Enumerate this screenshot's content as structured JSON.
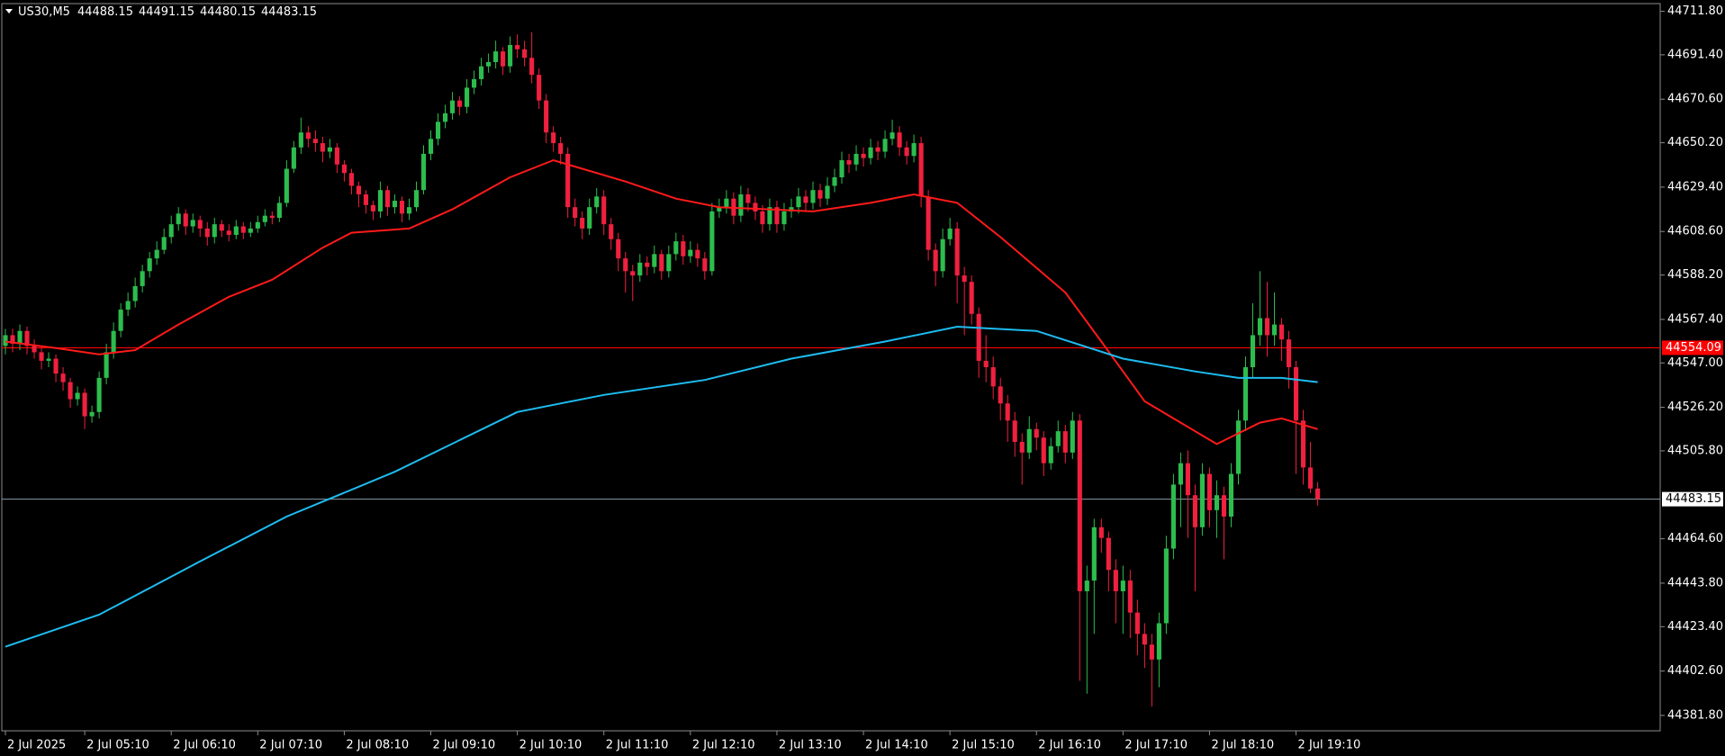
{
  "chart_data": {
    "type": "candlestick",
    "title": "US30,M5",
    "bull_color": "#2dbd4e",
    "bear_color": "#f0203f",
    "xlim": [
      -0.5,
      229.5
    ],
    "xticks": [
      {
        "value": 0,
        "label": "2 Jul 2025"
      },
      {
        "value": 11,
        "label": "2 Jul 05:10"
      },
      {
        "value": 23,
        "label": "2 Jul 06:10"
      },
      {
        "value": 35,
        "label": "2 Jul 07:10"
      },
      {
        "value": 47,
        "label": "2 Jul 08:10"
      },
      {
        "value": 59,
        "label": "2 Jul 09:10"
      },
      {
        "value": 71,
        "label": "2 Jul 10:10"
      },
      {
        "value": 83,
        "label": "2 Jul 11:10"
      },
      {
        "value": 95,
        "label": "2 Jul 12:10"
      },
      {
        "value": 107,
        "label": "2 Jul 13:10"
      },
      {
        "value": 119,
        "label": "2 Jul 14:10"
      },
      {
        "value": 131,
        "label": "2 Jul 15:10"
      },
      {
        "value": 143,
        "label": "2 Jul 16:10"
      },
      {
        "value": 155,
        "label": "2 Jul 17:10"
      },
      {
        "value": 167,
        "label": "2 Jul 18:10"
      },
      {
        "value": 179,
        "label": "2 Jul 19:10"
      }
    ],
    "ylim": [
      44374.6,
      44715.4
    ],
    "yticks": [
      {
        "value": 44711.8,
        "label": "44711.80"
      },
      {
        "value": 44691.4,
        "label": "44691.40"
      },
      {
        "value": 44670.6,
        "label": "44670.60"
      },
      {
        "value": 44650.2,
        "label": "44650.20"
      },
      {
        "value": 44629.4,
        "label": "44629.40"
      },
      {
        "value": 44608.6,
        "label": "44608.60"
      },
      {
        "value": 44588.2,
        "label": "44588.20"
      },
      {
        "value": 44567.4,
        "label": "44567.40"
      },
      {
        "value": 44547,
        "label": "44547.00"
      },
      {
        "value": 44526.2,
        "label": "44526.20"
      },
      {
        "value": 44505.8,
        "label": "44505.80"
      },
      {
        "value": 44464.6,
        "label": "44464.60"
      },
      {
        "value": 44443.8,
        "label": "44443.80"
      },
      {
        "value": 44423.4,
        "label": "44423.40"
      },
      {
        "value": 44402.6,
        "label": "44402.60"
      },
      {
        "value": 44381.8,
        "label": "44381.80"
      }
    ],
    "level": 44554.09,
    "level_color": "#ff0000",
    "price_line_color": "#8a9ba8",
    "candles": [
      [
        44555,
        44563,
        44551,
        44560
      ],
      [
        44560,
        44563,
        44552,
        44556
      ],
      [
        44556,
        44565,
        44553,
        44562
      ],
      [
        44562,
        44564,
        44551,
        44555
      ],
      [
        44555,
        44558,
        44549,
        44552
      ],
      [
        44552,
        44554,
        44544,
        44548
      ],
      [
        44548,
        44552,
        44545,
        44549
      ],
      [
        44549,
        44551,
        44538,
        44542
      ],
      [
        44542,
        44545,
        44534,
        44538
      ],
      [
        44538,
        44540,
        44526,
        44530
      ],
      [
        44530,
        44536,
        44527,
        44533
      ],
      [
        44533,
        44535,
        44516,
        44522
      ],
      [
        44522,
        44527,
        44519,
        44524
      ],
      [
        44524,
        44543,
        44521,
        44540
      ],
      [
        44540,
        44556,
        44537,
        44552
      ],
      [
        44552,
        44566,
        44549,
        44562
      ],
      [
        44562,
        44575,
        44559,
        44572
      ],
      [
        44572,
        44580,
        44569,
        44576
      ],
      [
        44576,
        44587,
        44573,
        44583
      ],
      [
        44583,
        44593,
        44580,
        44590
      ],
      [
        44590,
        44599,
        44587,
        44596
      ],
      [
        44596,
        44604,
        44593,
        44600
      ],
      [
        44600,
        44610,
        44598,
        44606
      ],
      [
        44606,
        44616,
        44603,
        44612
      ],
      [
        44612,
        44620,
        44609,
        44617
      ],
      [
        44617,
        44619,
        44607,
        44611
      ],
      [
        44611,
        44617,
        44608,
        44614
      ],
      [
        44614,
        44616,
        44606,
        44610
      ],
      [
        44610,
        44613,
        44602,
        44606
      ],
      [
        44606,
        44615,
        44603,
        44612
      ],
      [
        44612,
        44614,
        44606,
        44609
      ],
      [
        44609,
        44612,
        44604,
        44607
      ],
      [
        44607,
        44614,
        44605,
        44611
      ],
      [
        44611,
        44613,
        44605,
        44608
      ],
      [
        44608,
        44613,
        44606,
        44610
      ],
      [
        44610,
        44616,
        44608,
        44613
      ],
      [
        44613,
        44619,
        44611,
        44616
      ],
      [
        44616,
        44618,
        44612,
        44615
      ],
      [
        44615,
        44625,
        44613,
        44622
      ],
      [
        44622,
        44642,
        44620,
        44638
      ],
      [
        44638,
        44651,
        44636,
        44648
      ],
      [
        44648,
        44662,
        44645,
        44655
      ],
      [
        44655,
        44658,
        44648,
        44652
      ],
      [
        44652,
        44656,
        44646,
        44650
      ],
      [
        44650,
        44653,
        44641,
        44646
      ],
      [
        44646,
        44652,
        44643,
        44648
      ],
      [
        44648,
        44650,
        44636,
        44640
      ],
      [
        44640,
        44642,
        44632,
        44636
      ],
      [
        44636,
        44638,
        44626,
        44630
      ],
      [
        44630,
        44632,
        44620,
        44626
      ],
      [
        44626,
        44628,
        44617,
        44621
      ],
      [
        44621,
        44623,
        44614,
        44618
      ],
      [
        44618,
        44632,
        44615,
        44628
      ],
      [
        44628,
        44630,
        44616,
        44620
      ],
      [
        44620,
        44626,
        44617,
        44623
      ],
      [
        44623,
        44625,
        44613,
        44617
      ],
      [
        44617,
        44624,
        44614,
        44620
      ],
      [
        44620,
        44632,
        44618,
        44628
      ],
      [
        44628,
        44649,
        44626,
        44645
      ],
      [
        44645,
        44656,
        44642,
        44652
      ],
      [
        44652,
        44664,
        44649,
        44660
      ],
      [
        44660,
        44668,
        44657,
        44664
      ],
      [
        44664,
        44674,
        44661,
        44670
      ],
      [
        44670,
        44672,
        44663,
        44667
      ],
      [
        44667,
        44680,
        44664,
        44676
      ],
      [
        44676,
        44684,
        44673,
        44680
      ],
      [
        44680,
        44690,
        44677,
        44686
      ],
      [
        44686,
        44692,
        44683,
        44688
      ],
      [
        44688,
        44698,
        44685,
        44693
      ],
      [
        44693,
        44695,
        44682,
        44686
      ],
      [
        44686,
        44700,
        44683,
        44696
      ],
      [
        44696,
        44701,
        44690,
        44694
      ],
      [
        44694,
        44698,
        44686,
        44690
      ],
      [
        44690,
        44702,
        44678,
        44682
      ],
      [
        44682,
        44685,
        44666,
        44670
      ],
      [
        44670,
        44673,
        44650,
        44655
      ],
      [
        44655,
        44658,
        44646,
        44650
      ],
      [
        44650,
        44653,
        44640,
        44645
      ],
      [
        44645,
        44648,
        44615,
        44620
      ],
      [
        44620,
        44624,
        44611,
        44615
      ],
      [
        44615,
        44618,
        44605,
        44610
      ],
      [
        44610,
        44624,
        44607,
        44620
      ],
      [
        44620,
        44629,
        44617,
        44625
      ],
      [
        44625,
        44628,
        44607,
        44612
      ],
      [
        44612,
        44615,
        44600,
        44605
      ],
      [
        44605,
        44608,
        44590,
        44596
      ],
      [
        44596,
        44599,
        44580,
        44590
      ],
      [
        44590,
        44593,
        44576,
        44588
      ],
      [
        44588,
        44598,
        44585,
        44594
      ],
      [
        44594,
        44597,
        44588,
        44592
      ],
      [
        44592,
        44602,
        44589,
        44598
      ],
      [
        44598,
        44600,
        44586,
        44590
      ],
      [
        44590,
        44602,
        44587,
        44598
      ],
      [
        44598,
        44608,
        44595,
        44604
      ],
      [
        44604,
        44607,
        44593,
        44597
      ],
      [
        44597,
        44604,
        44594,
        44600
      ],
      [
        44600,
        44603,
        44592,
        44596
      ],
      [
        44596,
        44599,
        44586,
        44590
      ],
      [
        44590,
        44622,
        44588,
        44618
      ],
      [
        44618,
        44624,
        44615,
        44620
      ],
      [
        44620,
        44628,
        44617,
        44624
      ],
      [
        44624,
        44627,
        44612,
        44616
      ],
      [
        44616,
        44630,
        44613,
        44626
      ],
      [
        44626,
        44629,
        44618,
        44622
      ],
      [
        44622,
        44625,
        44614,
        44618
      ],
      [
        44618,
        44621,
        44608,
        44612
      ],
      [
        44612,
        44624,
        44609,
        44620
      ],
      [
        44620,
        44623,
        44608,
        44612
      ],
      [
        44612,
        44622,
        44609,
        44618
      ],
      [
        44618,
        44624,
        44615,
        44620
      ],
      [
        44620,
        44629,
        44617,
        44625
      ],
      [
        44625,
        44628,
        44618,
        44622
      ],
      [
        44622,
        44632,
        44619,
        44628
      ],
      [
        44628,
        44631,
        44620,
        44624
      ],
      [
        44624,
        44634,
        44621,
        44630
      ],
      [
        44630,
        44638,
        44627,
        44634
      ],
      [
        44634,
        44646,
        44631,
        44642
      ],
      [
        44642,
        44645,
        44636,
        44640
      ],
      [
        44640,
        44649,
        44637,
        44645
      ],
      [
        44645,
        44648,
        44639,
        44643
      ],
      [
        44643,
        44652,
        44640,
        44648
      ],
      [
        44648,
        44651,
        44642,
        44646
      ],
      [
        44646,
        44656,
        44643,
        44652
      ],
      [
        44652,
        44661,
        44649,
        44655
      ],
      [
        44655,
        44658,
        44644,
        44648
      ],
      [
        44648,
        44651,
        44640,
        44644
      ],
      [
        44644,
        44654,
        44641,
        44650
      ],
      [
        44650,
        44653,
        44620,
        44625
      ],
      [
        44625,
        44628,
        44595,
        44600
      ],
      [
        44600,
        44603,
        44583,
        44590
      ],
      [
        44590,
        44610,
        44587,
        44605
      ],
      [
        44605,
        44615,
        44602,
        44610
      ],
      [
        44610,
        44613,
        44575,
        44588
      ],
      [
        44588,
        44592,
        44560,
        44585
      ],
      [
        44585,
        44588,
        44565,
        44570
      ],
      [
        44570,
        44573,
        44540,
        44548
      ],
      [
        44548,
        44560,
        44538,
        44545
      ],
      [
        44545,
        44550,
        44530,
        44536
      ],
      [
        44536,
        44540,
        44520,
        44528
      ],
      [
        44528,
        44532,
        44510,
        44520
      ],
      [
        44520,
        44524,
        44503,
        44510
      ],
      [
        44510,
        44514,
        44490,
        44505
      ],
      [
        44505,
        44522,
        44502,
        44516
      ],
      [
        44516,
        44519,
        44506,
        44512
      ],
      [
        44512,
        44515,
        44494,
        44500
      ],
      [
        44500,
        44512,
        44497,
        44508
      ],
      [
        44508,
        44520,
        44505,
        44515
      ],
      [
        44515,
        44518,
        44500,
        44505
      ],
      [
        44505,
        44524,
        44502,
        44520
      ],
      [
        44520,
        44523,
        44398,
        44440
      ],
      [
        44440,
        44452,
        44392,
        44445
      ],
      [
        44445,
        44474,
        44420,
        44470
      ],
      [
        44470,
        44474,
        44458,
        44465
      ],
      [
        44465,
        44468,
        44440,
        44450
      ],
      [
        44450,
        44455,
        44425,
        44440
      ],
      [
        44440,
        44452,
        44420,
        44445
      ],
      [
        44445,
        44450,
        44418,
        44430
      ],
      [
        44430,
        44436,
        44410,
        44420
      ],
      [
        44420,
        44425,
        44404,
        44415
      ],
      [
        44415,
        44420,
        44386,
        44408
      ],
      [
        44408,
        44430,
        44395,
        44425
      ],
      [
        44425,
        44466,
        44420,
        44460
      ],
      [
        44460,
        44495,
        44455,
        44490
      ],
      [
        44490,
        44505,
        44470,
        44500
      ],
      [
        44500,
        44506,
        44465,
        44485
      ],
      [
        44485,
        44490,
        44440,
        44470
      ],
      [
        44470,
        44500,
        44466,
        44495
      ],
      [
        44495,
        44498,
        44470,
        44478
      ],
      [
        44478,
        44492,
        44465,
        44485
      ],
      [
        44485,
        44489,
        44455,
        44475
      ],
      [
        44475,
        44500,
        44470,
        44495
      ],
      [
        44495,
        44525,
        44490,
        44520
      ],
      [
        44520,
        44550,
        44515,
        44545
      ],
      [
        44545,
        44575,
        44540,
        44560
      ],
      [
        44560,
        44590,
        44555,
        44568
      ],
      [
        44568,
        44585,
        44550,
        44560
      ],
      [
        44560,
        44580,
        44555,
        44565
      ],
      [
        44565,
        44568,
        44548,
        44558
      ],
      [
        44558,
        44562,
        44535,
        44545
      ],
      [
        44545,
        44548,
        44495,
        44520
      ],
      [
        44520,
        44525,
        44490,
        44498
      ],
      [
        44498,
        44510,
        44486,
        44488.15
      ],
      [
        44488.15,
        44491.15,
        44480.15,
        44483.15
      ]
    ],
    "series": [
      {
        "color": "#ff1a1a",
        "x": [
          0,
          7,
          13,
          18,
          24,
          31,
          37,
          44,
          48,
          56,
          62,
          70,
          76,
          80,
          86,
          93,
          99,
          106,
          112,
          120,
          126,
          132,
          138,
          147,
          152,
          158,
          163,
          168,
          174,
          177,
          182
        ],
        "values": [
          44557,
          44554,
          44551,
          44553,
          44565,
          44578,
          44586,
          44601,
          44608,
          44610,
          44619,
          44634,
          44642,
          44638,
          44632,
          44624,
          44620,
          44619,
          44618,
          44622,
          44626,
          44622,
          44606,
          44580,
          44557,
          44529,
          44519,
          44509,
          44519,
          44521,
          44516
        ]
      },
      {
        "color": "#1ebcf0",
        "x": [
          0,
          13,
          27,
          39,
          54,
          71,
          83,
          97,
          109,
          122,
          132,
          143,
          155,
          165,
          171,
          177,
          182
        ],
        "values": [
          44414,
          44429,
          44454,
          44475,
          44496,
          44524,
          44532,
          44539,
          44549,
          44557,
          44564,
          44562,
          44549,
          44543,
          44540,
          44540,
          44538
        ]
      }
    ]
  }
}
